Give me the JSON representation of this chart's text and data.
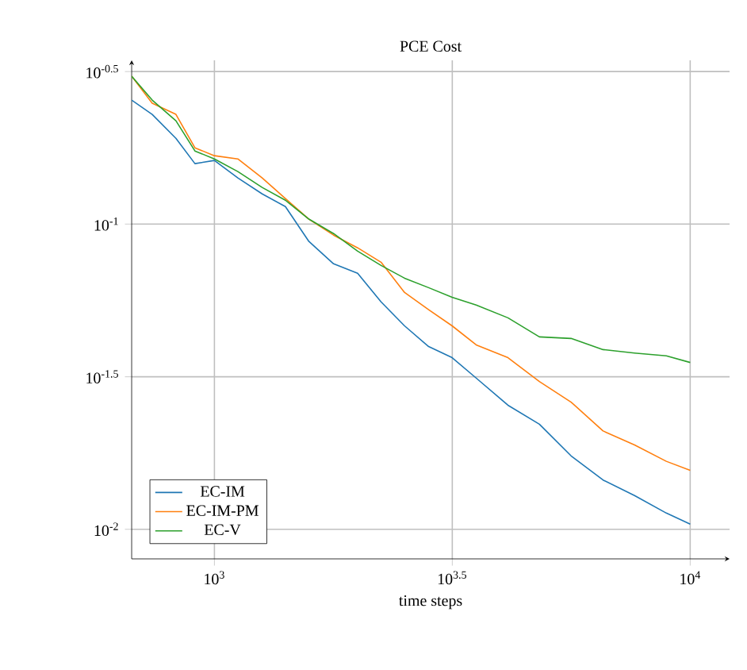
{
  "chart_data": {
    "type": "line",
    "title": "PCE Cost",
    "xlabel": "time steps",
    "log": "xy",
    "grid": true,
    "legend": "bottom left",
    "xlim": [
      670,
      12100
    ],
    "ylim": [
      0.008,
      0.344
    ],
    "xticks": [
      {
        "value": 1000,
        "label": "10$^{3}$"
      },
      {
        "value": 3162,
        "label": "10$^{3.5}$"
      },
      {
        "value": 10000,
        "label": "10$^{4}$"
      }
    ],
    "yticks": [
      {
        "value": 0.01,
        "label": "10$^{-2}$"
      },
      {
        "value": 0.0316,
        "label": "10$^{-1.5}$"
      },
      {
        "value": 0.1,
        "label": "10$^{-1}$"
      },
      {
        "value": 0.316,
        "label": "10$^{-0.5}$"
      }
    ],
    "x": [
      670,
      740,
      830,
      910,
      1000,
      1120,
      1260,
      1410,
      1580,
      1780,
      2000,
      2240,
      2510,
      2820,
      3160,
      3550,
      4140,
      4820,
      5620,
      6560,
      7640,
      8910,
      10000
    ],
    "series": [
      {
        "name": "EC-IM",
        "color": "#1f77b4",
        "values": [
          0.2548,
          0.2288,
          0.191,
          0.1578,
          0.1616,
          0.1416,
          0.1256,
          0.1141,
          0.0877,
          0.0741,
          0.069,
          0.0556,
          0.0464,
          0.0397,
          0.0365,
          0.0313,
          0.0255,
          0.0221,
          0.0174,
          0.0145,
          0.0129,
          0.0113,
          0.0104
        ]
      },
      {
        "name": "EC-IM-PM",
        "color": "#ff7f0e",
        "values": [
          0.305,
          0.2489,
          0.2288,
          0.1778,
          0.1675,
          0.1635,
          0.1416,
          0.1212,
          0.1038,
          0.092,
          0.0836,
          0.075,
          0.0597,
          0.0524,
          0.0464,
          0.0402,
          0.0365,
          0.0305,
          0.0261,
          0.021,
          0.0189,
          0.0167,
          0.0156
        ]
      },
      {
        "name": "EC-V",
        "color": "#2ca02c",
        "values": [
          0.305,
          0.2548,
          0.2181,
          0.1736,
          0.1635,
          0.1486,
          0.1318,
          0.1197,
          0.1038,
          0.0931,
          0.0815,
          0.0732,
          0.0665,
          0.0619,
          0.0576,
          0.0543,
          0.0493,
          0.0427,
          0.0422,
          0.0388,
          0.0378,
          0.037,
          0.0352
        ]
      }
    ]
  }
}
